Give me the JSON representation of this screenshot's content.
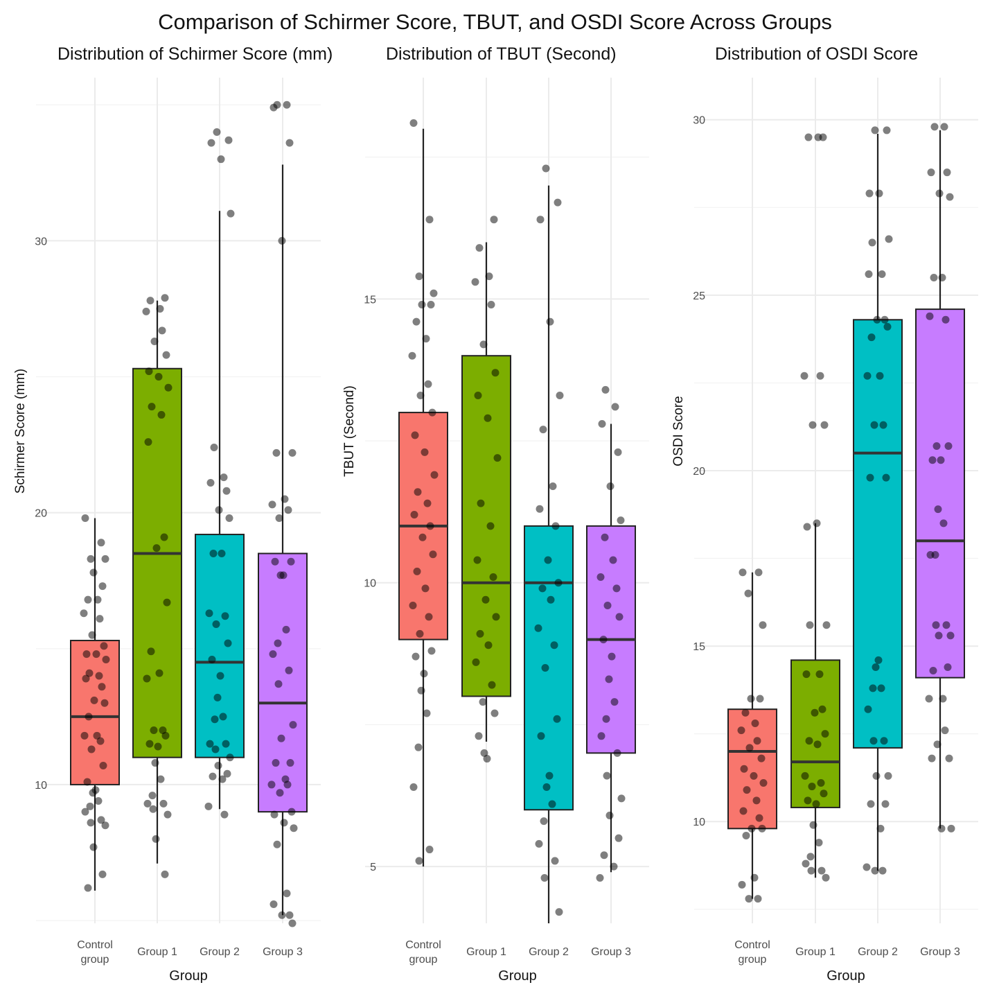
{
  "title": "Comparison of Schirmer Score, TBUT, and OSDI Score Across Groups",
  "colors": {
    "Control group": "#f8766d",
    "Group 1": "#7cae00",
    "Group 2": "#00bfc4",
    "Group 3": "#c77cff",
    "points": "#000000",
    "grid": "#ebebeb"
  },
  "chart_data": [
    {
      "type": "box",
      "title": "Distribution of Schirmer Score (mm)",
      "xlabel": "Group",
      "ylabel": "Schirmer Score (mm)",
      "categories": [
        "Control group",
        "Group 1",
        "Group 2",
        "Group 3"
      ],
      "ylim": [
        4.9,
        36.0
      ],
      "yticks": [
        10,
        20,
        30
      ],
      "boxes": [
        {
          "q1": 10.0,
          "median": 12.5,
          "q3": 15.3,
          "min": 6.1,
          "max": 19.8
        },
        {
          "q1": 11.0,
          "median": 18.5,
          "q3": 25.3,
          "min": 7.1,
          "max": 27.8
        },
        {
          "q1": 11.0,
          "median": 14.5,
          "q3": 19.2,
          "min": 9.1,
          "max": 31.1
        },
        {
          "q1": 9.0,
          "median": 13.0,
          "q3": 18.5,
          "min": 5.2,
          "max": 32.8
        }
      ],
      "points": [
        [
          19.8,
          18.9,
          18.3,
          18.3,
          17.8,
          17.3,
          16.8,
          16.8,
          16.3,
          16.1,
          15.5,
          15.1,
          14.8,
          14.8,
          14.6,
          14.1,
          14.0,
          13.9,
          13.6,
          13.1,
          13.0,
          12.5,
          11.8,
          11.8,
          11.6,
          11.3,
          10.7,
          10.1,
          9.8,
          9.7,
          9.4,
          9.2,
          9.0,
          8.7,
          8.6,
          8.5,
          7.7,
          6.7,
          6.2
        ],
        [
          27.9,
          27.8,
          27.5,
          27.4,
          26.7,
          26.3,
          25.8,
          25.2,
          25.0,
          24.6,
          23.9,
          23.6,
          22.6,
          19.1,
          18.7,
          16.7,
          14.9,
          14.1,
          13.9,
          12.0,
          12.0,
          11.8,
          11.5,
          11.4,
          10.8,
          10.2,
          9.6,
          9.3,
          9.3,
          9.1,
          8.9,
          8.0,
          6.7
        ],
        [
          34.0,
          33.7,
          33.6,
          33.0,
          31.0,
          22.4,
          21.3,
          21.1,
          20.8,
          20.1,
          19.8,
          18.5,
          18.5,
          16.3,
          16.2,
          15.9,
          15.2,
          14.6,
          14.0,
          13.2,
          12.5,
          12.4,
          11.5,
          11.5,
          11.3,
          11.0,
          10.7,
          10.4,
          10.3,
          10.2,
          9.2,
          8.9
        ],
        [
          35.0,
          35.0,
          34.9,
          33.6,
          30.0,
          22.2,
          22.2,
          20.5,
          20.3,
          20.1,
          19.8,
          18.2,
          18.2,
          17.7,
          17.7,
          15.7,
          15.2,
          14.8,
          14.2,
          13.7,
          12.2,
          11.7,
          10.8,
          10.8,
          10.2,
          10.0,
          10.0,
          9.7,
          9.0,
          8.9,
          8.6,
          8.4,
          7.8,
          6.0,
          5.6,
          5.2,
          5.2,
          4.9
        ]
      ]
    },
    {
      "type": "box",
      "title": "Distribution of TBUT (Second)",
      "xlabel": "Group",
      "ylabel": "TBUT (Second)",
      "categories": [
        "Control group",
        "Group 1",
        "Group 2",
        "Group 3"
      ],
      "ylim": [
        4.0,
        18.9
      ],
      "yticks": [
        5,
        10,
        15
      ],
      "boxes": [
        {
          "q1": 9.0,
          "median": 11.0,
          "q3": 13.0,
          "min": 5.0,
          "max": 18.0
        },
        {
          "q1": 8.0,
          "median": 10.0,
          "q3": 14.0,
          "min": 7.2,
          "max": 16.0
        },
        {
          "q1": 6.0,
          "median": 10.0,
          "q3": 11.0,
          "min": 4.0,
          "max": 17.0
        },
        {
          "q1": 7.0,
          "median": 9.0,
          "q3": 11.0,
          "min": 4.9,
          "max": 12.8
        }
      ],
      "points": [
        [
          18.1,
          16.4,
          15.4,
          15.1,
          14.9,
          14.9,
          14.6,
          14.3,
          14.0,
          13.5,
          13.3,
          13.0,
          12.6,
          12.3,
          11.9,
          11.6,
          11.4,
          11.2,
          11.0,
          10.8,
          10.5,
          10.2,
          9.9,
          9.6,
          9.4,
          9.1,
          8.8,
          8.7,
          8.4,
          8.1,
          7.7,
          7.1,
          6.4,
          5.3,
          5.1
        ],
        [
          16.4,
          15.9,
          15.4,
          15.3,
          14.9,
          14.2,
          13.7,
          13.3,
          12.9,
          12.2,
          11.4,
          11.0,
          10.4,
          10.1,
          9.7,
          9.4,
          9.1,
          8.9,
          8.6,
          8.2,
          7.9,
          7.7,
          7.3,
          6.9,
          7.0
        ],
        [
          17.3,
          16.7,
          16.4,
          14.6,
          13.3,
          12.7,
          11.7,
          11.3,
          11.0,
          10.4,
          10.0,
          9.9,
          9.7,
          9.2,
          8.9,
          8.5,
          7.6,
          7.3,
          6.6,
          6.4,
          6.1,
          5.8,
          5.4,
          5.1,
          4.8,
          4.2
        ],
        [
          13.4,
          13.1,
          12.8,
          12.3,
          11.7,
          11.1,
          10.8,
          10.4,
          10.1,
          9.9,
          9.6,
          9.4,
          9.0,
          8.7,
          8.3,
          7.9,
          7.6,
          7.3,
          7.0,
          6.6,
          6.2,
          5.9,
          5.5,
          5.2,
          5.0,
          4.8
        ]
      ]
    },
    {
      "type": "box",
      "title": "Distribution of OSDI Score",
      "xlabel": "Group",
      "ylabel": "OSDI Score",
      "categories": [
        "Control group",
        "Group 1",
        "Group 2",
        "Group 3"
      ],
      "ylim": [
        7.1,
        31.2
      ],
      "yticks": [
        10,
        15,
        20,
        25,
        30
      ],
      "boxes": [
        {
          "q1": 9.8,
          "median": 12.0,
          "q3": 13.2,
          "min": 7.8,
          "max": 17.1
        },
        {
          "q1": 10.4,
          "median": 11.7,
          "q3": 14.6,
          "min": 8.4,
          "max": 18.5
        },
        {
          "q1": 12.1,
          "median": 20.5,
          "q3": 24.3,
          "min": 8.6,
          "max": 29.6
        },
        {
          "q1": 14.1,
          "median": 18.0,
          "q3": 24.6,
          "min": 9.8,
          "max": 29.7
        }
      ],
      "points": [
        [
          17.1,
          17.1,
          16.5,
          15.6,
          13.5,
          13.5,
          13.1,
          12.8,
          12.6,
          12.3,
          12.1,
          11.8,
          11.5,
          11.3,
          11.1,
          10.9,
          10.6,
          10.3,
          10.1,
          9.8,
          9.8,
          9.6,
          8.4,
          8.2,
          7.8,
          7.8
        ],
        [
          29.5,
          29.5,
          29.5,
          22.7,
          22.7,
          21.3,
          21.3,
          18.4,
          18.5,
          15.6,
          15.6,
          14.2,
          14.2,
          13.2,
          13.1,
          12.5,
          12.3,
          12.2,
          11.3,
          11.1,
          11.0,
          10.8,
          10.6,
          10.5,
          9.9,
          9.4,
          9.0,
          8.8,
          8.6,
          8.6,
          8.4
        ],
        [
          29.7,
          29.7,
          27.9,
          27.9,
          26.6,
          26.5,
          25.6,
          25.6,
          24.3,
          24.3,
          24.1,
          23.8,
          22.7,
          22.7,
          21.3,
          21.3,
          19.8,
          19.8,
          14.6,
          14.4,
          13.8,
          13.8,
          13.2,
          12.3,
          12.3,
          11.3,
          11.3,
          10.5,
          10.5,
          9.8,
          8.7,
          8.6,
          8.6
        ],
        [
          29.8,
          29.8,
          28.5,
          28.5,
          27.9,
          27.8,
          25.5,
          25.5,
          24.4,
          24.3,
          20.7,
          20.7,
          20.3,
          20.3,
          18.9,
          18.5,
          17.6,
          17.6,
          15.6,
          15.6,
          15.3,
          15.3,
          14.4,
          14.3,
          13.5,
          13.5,
          12.6,
          12.2,
          11.8,
          11.8,
          9.8,
          9.8
        ]
      ]
    }
  ]
}
